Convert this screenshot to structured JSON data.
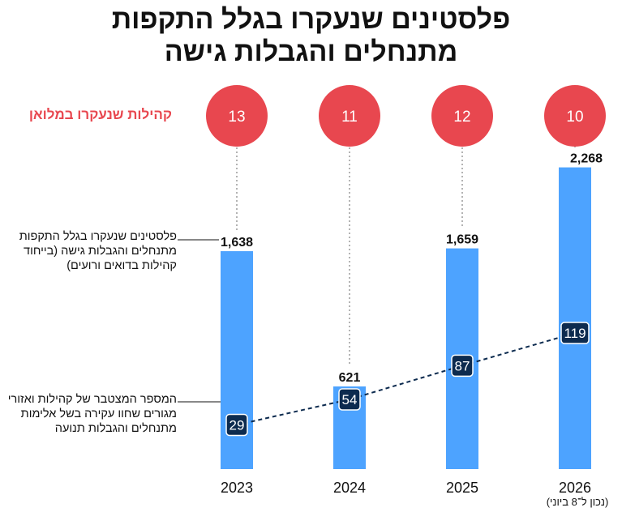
{
  "title": {
    "line1": "פלסטינים שנעקרו בגלל התקפות",
    "line2": "מתנחלים והגבלות גישה"
  },
  "legend_circles": "קהילות שנעקרו במלואן",
  "note_events": "פלסטינים שנעקרו בגלל התקפות מתנחלים והגבלות גישה (בייחוד קהילות בדואים ורועים)",
  "note_communities": "המספר המצטבר של קהילות ואזורי מגורים שחוו עקירה בשל אלימות מתנחלים והגבלות תנועה",
  "annotation_2026": "(נכון ל־8 ביוני)",
  "colors": {
    "bar": "#4da3ff",
    "circle": "#e8474f",
    "marker": "#0d2b4f",
    "line": "#0d2b4f",
    "legend_text": "#e8474f"
  },
  "chart_data": {
    "type": "bar",
    "categories": [
      "2023",
      "2024",
      "2025",
      "2026"
    ],
    "series": [
      {
        "values": [
          1638,
          621,
          1659,
          2268
        ],
        "labels": [
          "1,638",
          "621",
          "1,659",
          "2,268"
        ]
      },
      {
        "values": [
          29,
          54,
          87,
          119
        ]
      },
      {
        "values": [
          13,
          11,
          12,
          10
        ]
      }
    ],
    "grid": false
  }
}
